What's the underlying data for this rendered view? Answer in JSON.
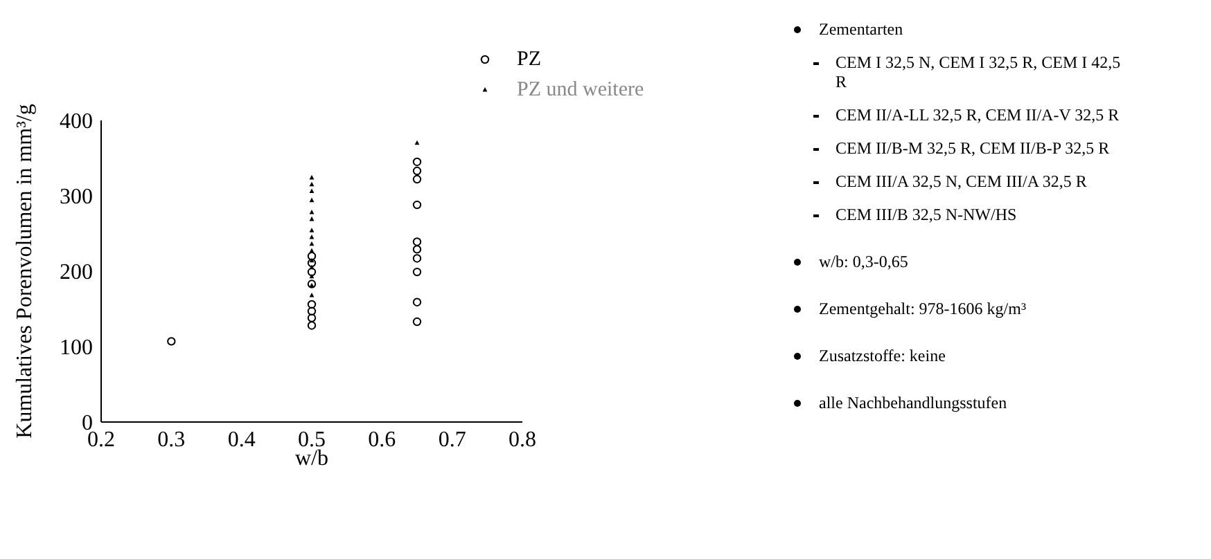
{
  "chart_data": {
    "type": "scatter",
    "xlabel": "w/b",
    "ylabel": "Kumulatives Porenvolumen in mm³/g",
    "xlim": [
      0.2,
      0.8
    ],
    "xticks": [
      {
        "value": 0.2,
        "label": "0.2"
      },
      {
        "value": 0.3,
        "label": "0.3"
      },
      {
        "value": 0.4,
        "label": "0.4"
      },
      {
        "value": 0.5,
        "label": "0.5"
      },
      {
        "value": 0.6,
        "label": "0.6"
      },
      {
        "value": 0.7,
        "label": "0.7"
      },
      {
        "value": 0.8,
        "label": "0.8"
      }
    ],
    "ylim": [
      0,
      400
    ],
    "yticks": [
      0,
      100,
      200,
      300,
      400
    ],
    "grid": false,
    "legend": "top right",
    "series": [
      {
        "name": "PZ",
        "color": "#000000",
        "marker": "circle",
        "x": [
          0.3,
          0.5,
          0.5,
          0.5,
          0.5,
          0.5,
          0.5,
          0.5,
          0.5,
          0.65,
          0.65,
          0.65,
          0.65,
          0.65,
          0.65,
          0.65,
          0.65,
          0.65,
          0.65
        ],
        "values": [
          107,
          220,
          211,
          199,
          183,
          156,
          147,
          138,
          128,
          345,
          333,
          322,
          288,
          239,
          229,
          217,
          199,
          159,
          133
        ]
      },
      {
        "name": "PZ und weitere",
        "color": "#000000",
        "marker": "triangle",
        "x": [
          0.5,
          0.5,
          0.5,
          0.5,
          0.5,
          0.5,
          0.5,
          0.5,
          0.5,
          0.5,
          0.5,
          0.5,
          0.5,
          0.5,
          0.5,
          0.65
        ],
        "values": [
          324,
          315,
          306,
          294,
          278,
          269,
          254,
          245,
          236,
          227,
          214,
          205,
          193,
          181,
          168,
          370
        ]
      }
    ],
    "annotations": [
      "Zementarten",
      "CEM I 32,5 N, CEM I 32,5 R, CEM I 42,5 R",
      "CEM II/A-LL 32,5 R, CEM II/A-V 32,5 R",
      "CEM II/B-M 32,5 R, CEM II/B-P 32,5 R",
      "CEM III/A 32,5 N, CEM III/A 32,5 R",
      "CEM III/B 32,5 N-NW/HS",
      "w/b: 0,3-0,65",
      "Zementgehalt: 978-1606 kg/m³",
      "Zusatzstoffe: keine",
      "alle Nachbehandlungsstufen"
    ]
  }
}
